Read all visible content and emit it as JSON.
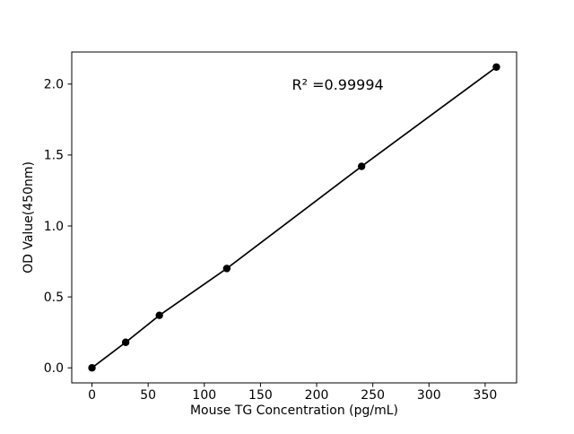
{
  "chart_data": {
    "type": "scatter",
    "title": "",
    "xlabel": "Mouse TG Concentration (pg/mL)",
    "ylabel": "OD Value(450nm)",
    "x": [
      0,
      30,
      60,
      120,
      240,
      360
    ],
    "y": [
      0.0,
      0.18,
      0.37,
      0.7,
      1.42,
      2.12
    ],
    "line_through_points": true,
    "xlim": [
      -18,
      378
    ],
    "ylim": [
      -0.106,
      2.226
    ],
    "xticks": [
      0,
      50,
      100,
      150,
      200,
      250,
      300,
      350
    ],
    "yticks": [
      0.0,
      0.5,
      1.0,
      1.5,
      2.0
    ],
    "grid": false,
    "legend": null,
    "annotation": {
      "text": "R² =0.99994",
      "x": 178,
      "y": 1.96
    },
    "colors": {
      "line": "#000000",
      "marker": "#000000",
      "axis": "#000000",
      "text": "#000000",
      "background": "#ffffff"
    }
  }
}
